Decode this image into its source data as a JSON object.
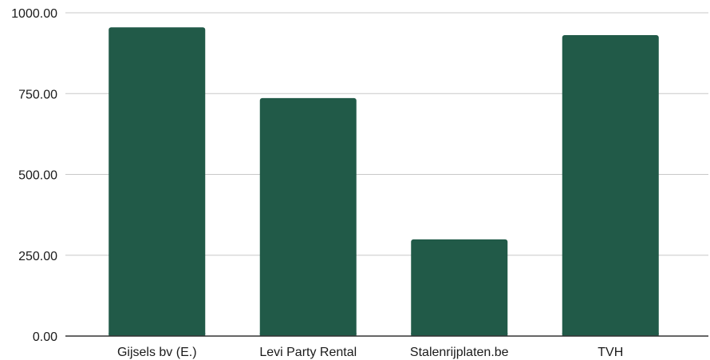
{
  "chart_data": {
    "type": "bar",
    "title": "",
    "xlabel": "",
    "ylabel": "",
    "categories": [
      "Gijsels bv (E.)",
      "Levi Party Rental",
      "Stalenrijplaten.be",
      "TVH"
    ],
    "values": [
      955,
      736,
      299,
      931
    ],
    "ylim": [
      0,
      1000
    ],
    "yticks": [
      "0.00",
      "250.00",
      "500.00",
      "750.00",
      "1000.00"
    ],
    "ytick_values": [
      0,
      250,
      500,
      750,
      1000
    ],
    "grid": true,
    "legend": "none",
    "colors": {
      "bar": "#215A48",
      "grid": "#c8c8c8",
      "axis": "#333333"
    }
  }
}
